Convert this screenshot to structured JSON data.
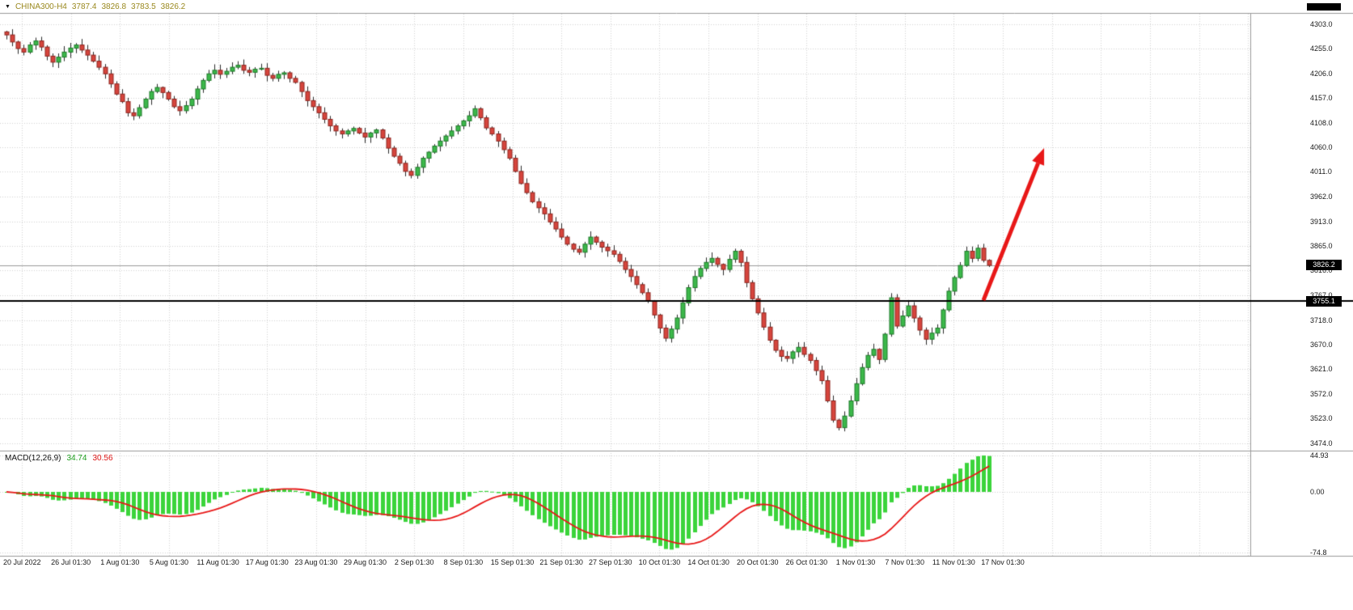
{
  "header": {
    "symbol": "CHINA300-H4",
    "open": "3787.4",
    "high": "3826.8",
    "low": "3783.5",
    "close": "3826.2",
    "dropdown_icon": "▼",
    "text_color": "#9a891f"
  },
  "chart_data": [
    {
      "type": "candlestick",
      "title": "CHINA300-H4",
      "timeframe": "H4",
      "ylim": [
        3467,
        4316
      ],
      "y_ticks": [
        4303.0,
        4255.0,
        4206.0,
        4157.0,
        4108.0,
        4060.0,
        4011.0,
        3962.0,
        3913.0,
        3865.0,
        3816.0,
        3767.0,
        3718.0,
        3670.0,
        3621.0,
        3572.0,
        3523.0,
        3474.0
      ],
      "x_labels": [
        "20 Jul 2022",
        "26 Jul 01:30",
        "1 Aug 01:30",
        "5 Aug 01:30",
        "11 Aug 01:30",
        "17 Aug 01:30",
        "23 Aug 01:30",
        "29 Aug 01:30",
        "2 Sep 01:30",
        "8 Sep 01:30",
        "15 Sep 01:30",
        "21 Sep 01:30",
        "27 Sep 01:30",
        "10 Oct 01:30",
        "14 Oct 01:30",
        "20 Oct 01:30",
        "26 Oct 01:30",
        "1 Nov 01:30",
        "7 Nov 01:30",
        "11 Nov 01:30",
        "17 Nov 01:30"
      ],
      "closes": [
        4282,
        4268,
        4255,
        4248,
        4262,
        4270,
        4258,
        4240,
        4228,
        4238,
        4248,
        4256,
        4262,
        4252,
        4242,
        4230,
        4218,
        4205,
        4185,
        4165,
        4150,
        4128,
        4122,
        4138,
        4155,
        4170,
        4178,
        4168,
        4155,
        4140,
        4132,
        4142,
        4155,
        4175,
        4192,
        4205,
        4212,
        4204,
        4210,
        4218,
        4222,
        4212,
        4208,
        4214,
        4216,
        4202,
        4196,
        4204,
        4207,
        4196,
        4188,
        4170,
        4152,
        4140,
        4128,
        4115,
        4102,
        4092,
        4086,
        4092,
        4097,
        4088,
        4080,
        4088,
        4094,
        4078,
        4058,
        4042,
        4028,
        4012,
        4004,
        4020,
        4038,
        4050,
        4062,
        4072,
        4082,
        4092,
        4102,
        4112,
        4122,
        4136,
        4118,
        4098,
        4086,
        4072,
        4055,
        4038,
        4012,
        3988,
        3970,
        3952,
        3940,
        3928,
        3912,
        3898,
        3882,
        3868,
        3858,
        3852,
        3868,
        3882,
        3872,
        3862,
        3855,
        3848,
        3834,
        3818,
        3804,
        3788,
        3772,
        3755,
        3728,
        3702,
        3682,
        3700,
        3722,
        3752,
        3782,
        3804,
        3820,
        3832,
        3840,
        3828,
        3818,
        3838,
        3854,
        3832,
        3792,
        3760,
        3732,
        3704,
        3678,
        3658,
        3646,
        3642,
        3655,
        3664,
        3650,
        3638,
        3618,
        3598,
        3558,
        3520,
        3505,
        3528,
        3558,
        3592,
        3624,
        3648,
        3660,
        3640,
        3690,
        3762,
        3706,
        3726,
        3746,
        3722,
        3698,
        3680,
        3692,
        3702,
        3738,
        3775,
        3802,
        3826,
        3854,
        3840,
        3860,
        3836,
        3826.2
      ],
      "current_price": {
        "value": 3826.2,
        "label": "3826.2"
      },
      "hline": {
        "value": 3755.1,
        "label": "3755.1",
        "color": "#000000"
      },
      "arrow": {
        "from_index": 169,
        "from_price": 3757,
        "to_index": 179.5,
        "to_price": 4058,
        "color": "#e81818"
      },
      "colors": {
        "bull": "#3cb84a",
        "bear": "#d6453d",
        "bull_border": "#1f7a2a",
        "bear_border": "#8e2620",
        "wick": "#2a2a2a",
        "grid": "#d4d4d4",
        "current_price_line": "#9a9a9a",
        "frame": "#9a9a9a"
      }
    },
    {
      "type": "macd",
      "label": "MACD(12,26,9)",
      "main_value": "34.74",
      "signal_value": "30.56",
      "params": {
        "fast": 12,
        "slow": 26,
        "signal": 9
      },
      "ylim": [
        -78,
        48
      ],
      "y_ticks": [
        44.93,
        0,
        -74.8
      ],
      "y_tick_labels": [
        "44.93",
        "0.00",
        "-74.8"
      ],
      "colors": {
        "histogram": "#3bd43b",
        "signal": "#e81818"
      }
    }
  ]
}
